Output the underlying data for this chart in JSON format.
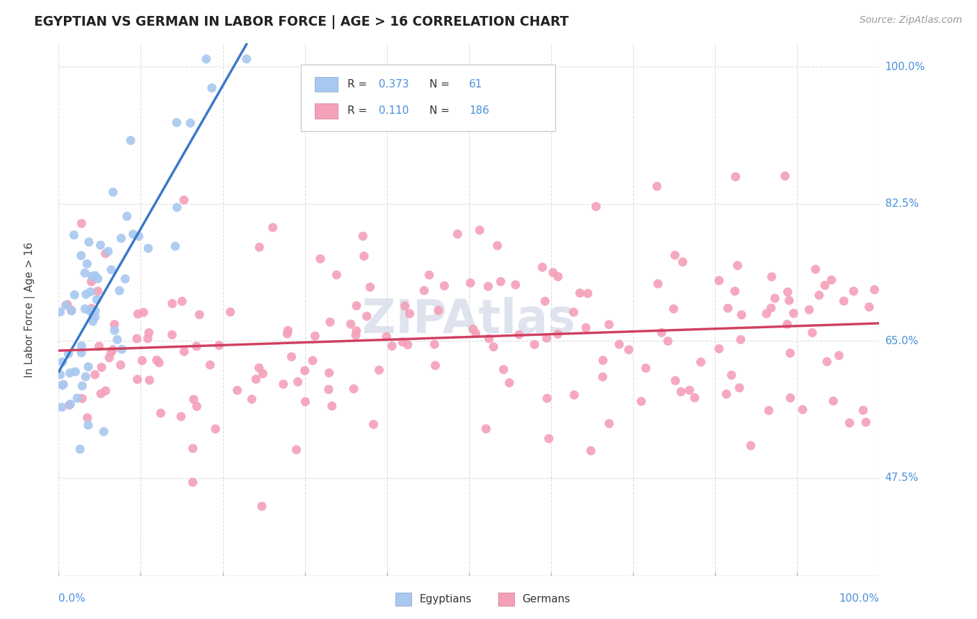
{
  "title": "EGYPTIAN VS GERMAN IN LABOR FORCE | AGE > 16 CORRELATION CHART",
  "source": "Source: ZipAtlas.com",
  "ylabel": "In Labor Force | Age > 16",
  "egyptian_color": "#a8c8f0",
  "german_color": "#f4a0b8",
  "egyptian_line_color": "#3878c8",
  "german_line_color": "#d04060",
  "background_color": "#ffffff",
  "grid_color": "#dddddd",
  "title_color": "#222222",
  "axis_color": "#4a90d9",
  "watermark_color": "#d0d8e8",
  "R_egy": 0.373,
  "N_egy": 61,
  "R_ger": 0.11,
  "N_ger": 186,
  "xlim": [
    0.0,
    1.0
  ],
  "ylim": [
    0.35,
    1.03
  ],
  "ytick_positions": [
    1.0,
    0.825,
    0.65,
    0.475
  ],
  "ytick_labels": [
    "100.0%",
    "82.5%",
    "65.0%",
    "47.5%"
  ],
  "xtick_left_label": "0.0%",
  "xtick_right_label": "100.0%",
  "legend_bottom_labels": [
    "Egyptians",
    "Germans"
  ]
}
